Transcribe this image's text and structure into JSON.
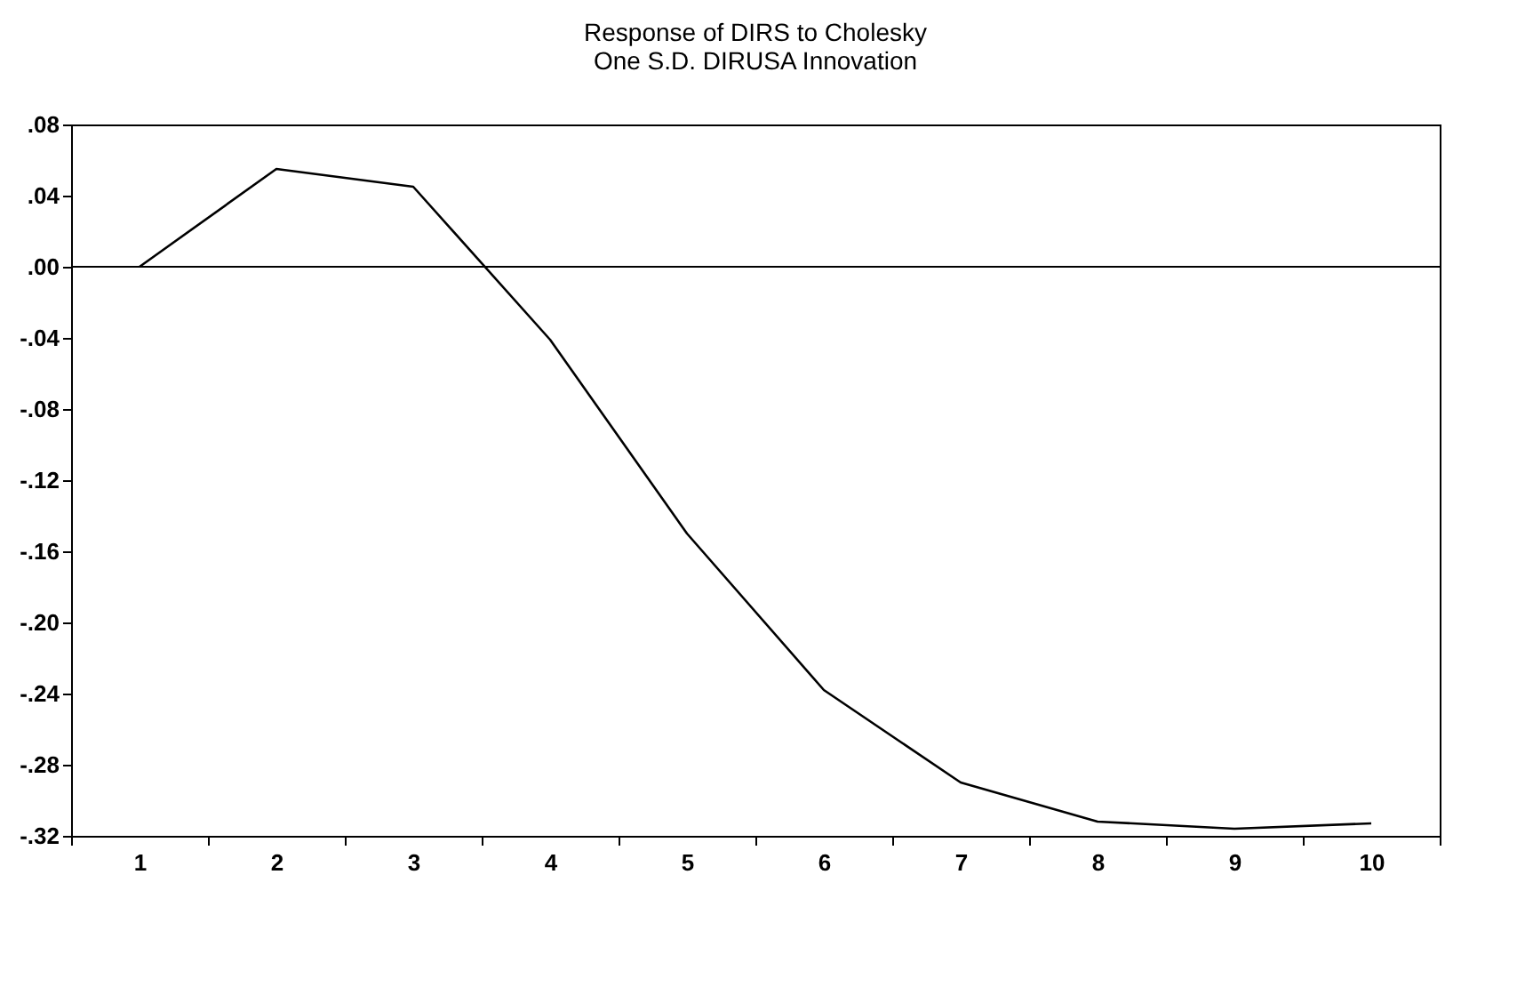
{
  "chart_data": {
    "type": "line",
    "title": "Response of DIRS to Cholesky",
    "subtitle": "One S.D. DIRUSA Innovation",
    "categories": [
      "1",
      "2",
      "3",
      "4",
      "5",
      "6",
      "7",
      "8",
      "9",
      "10"
    ],
    "series": [
      {
        "color": "#000000",
        "values": [
          0.0,
          0.055,
          0.045,
          -0.041,
          -0.15,
          -0.238,
          -0.29,
          -0.312,
          -0.316,
          -0.313
        ]
      }
    ],
    "ylim": [
      -0.32,
      0.08
    ],
    "yticks": [
      {
        "value": 0.08,
        "label": ".08"
      },
      {
        "value": 0.04,
        "label": ".04"
      },
      {
        "value": 0,
        "label": ".00"
      },
      {
        "value": -0.04,
        "label": "-.04"
      },
      {
        "value": -0.08,
        "label": "-.08"
      },
      {
        "value": -0.12,
        "label": "-.12"
      },
      {
        "value": -0.16,
        "label": "-.16"
      },
      {
        "value": -0.2,
        "label": "-.20"
      },
      {
        "value": -0.24,
        "label": "-.24"
      },
      {
        "value": -0.28,
        "label": "-.28"
      },
      {
        "value": -0.32,
        "label": "-.32"
      }
    ],
    "ref_lines": [
      {
        "axis": "y",
        "value": 0,
        "color": "#000000"
      }
    ],
    "grid": false,
    "legend": false,
    "marker": "none",
    "line_style": "solid"
  }
}
